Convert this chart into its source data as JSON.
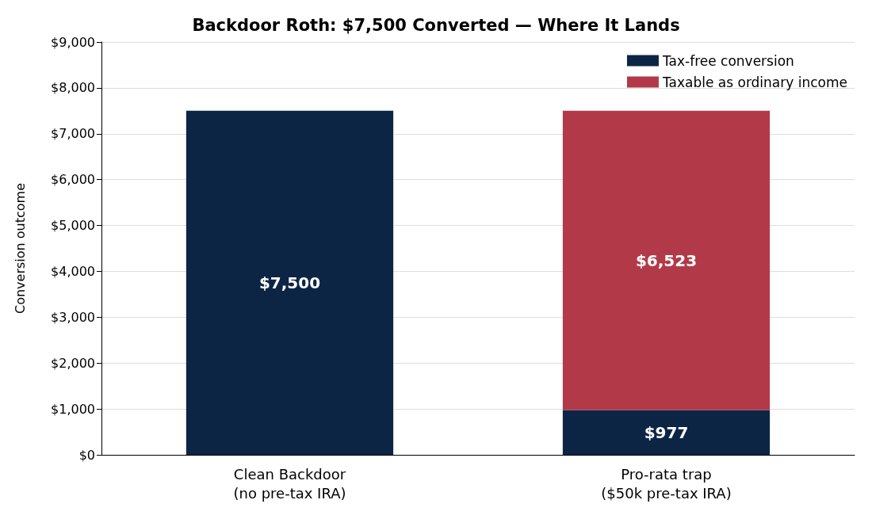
{
  "chart_data": {
    "type": "bar",
    "title": "Backdoor Roth: $7,500 Converted — Where It Lands",
    "ylabel": "Conversion outcome",
    "categories": [
      "Clean Backdoor\n(no pre-tax IRA)",
      "Pro-rata trap\n($50k pre-tax IRA)"
    ],
    "stacked": true,
    "series": [
      {
        "name": "Tax-free conversion",
        "color": "#0d2545",
        "values": [
          7500,
          977
        ],
        "value_labels": [
          "$7,500",
          "$977"
        ]
      },
      {
        "name": "Taxable as ordinary income",
        "color": "#b23a48",
        "values": [
          null,
          6523
        ],
        "value_labels": [
          null,
          "$6,523"
        ]
      }
    ],
    "ylim": [
      0,
      9000
    ],
    "yticks": [
      {
        "value": 0,
        "label": "$0"
      },
      {
        "value": 1000,
        "label": "$1,000"
      },
      {
        "value": 2000,
        "label": "$2,000"
      },
      {
        "value": 3000,
        "label": "$3,000"
      },
      {
        "value": 4000,
        "label": "$4,000"
      },
      {
        "value": 5000,
        "label": "$5,000"
      },
      {
        "value": 6000,
        "label": "$6,000"
      },
      {
        "value": 7000,
        "label": "$7,000"
      },
      {
        "value": 8000,
        "label": "$8,000"
      },
      {
        "value": 9000,
        "label": "$9,000"
      }
    ],
    "grid": "y",
    "legend": "top right"
  }
}
